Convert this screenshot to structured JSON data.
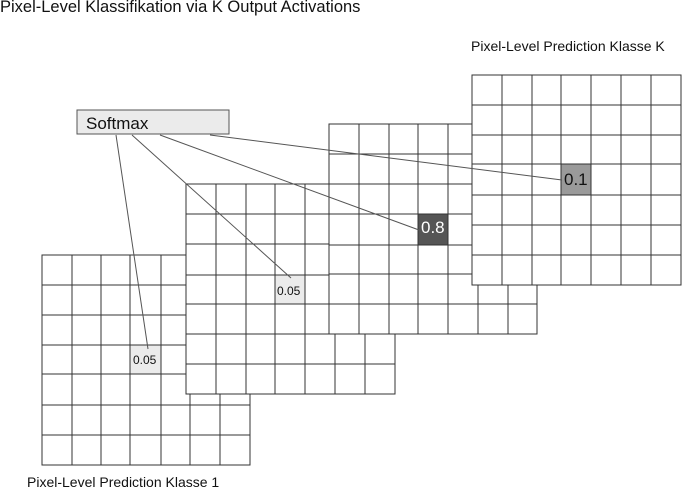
{
  "title": "Pixel-Level Klassifikation via K Output Activations",
  "caption_top": "Pixel-Level Prediction Klasse K",
  "caption_bottom": "Pixel-Level Prediction Klasse 1",
  "softmax_label": "Softmax",
  "cell_values": {
    "klasse_1": "0.05",
    "layer_2": "0.05",
    "layer_3": "0.8",
    "klasse_k": "0.1"
  },
  "colors": {
    "grid_line": "#333333",
    "softmax_fill": "#ebebeb",
    "cell_005": "#ebebeb",
    "cell_08": "#555555",
    "cell_01": "#9a9a9a"
  }
}
